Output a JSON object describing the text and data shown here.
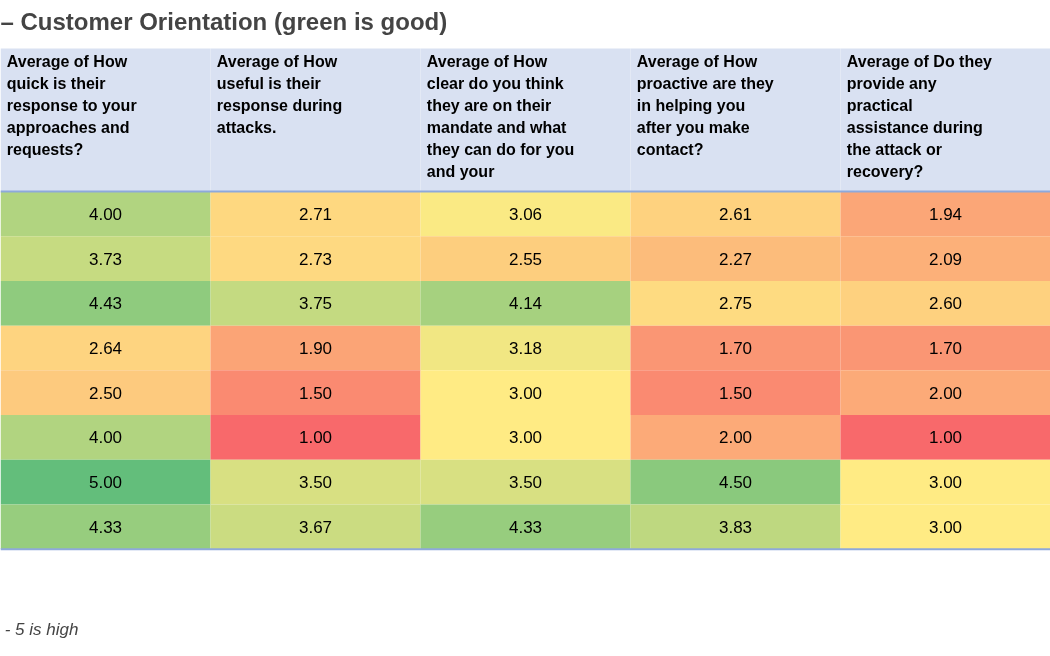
{
  "chart_data": {
    "type": "heatmap",
    "title": "– Customer Orientation (green is good)",
    "categories": [
      "Average of How quick is their response to your approaches and requests?",
      "Average of How useful is their response during attacks.",
      "Average of How clear do you think they are on their mandate and what they can do for you and your",
      "Average of How proactive are they in helping you after you make contact?",
      "Average of Do they provide any practical assistance during the attack or recovery?"
    ],
    "y_categories": [
      null,
      null,
      null,
      null,
      null,
      null,
      null,
      null
    ],
    "cells": [
      [
        4.0,
        2.71,
        3.06,
        2.61,
        1.94
      ],
      [
        3.73,
        2.73,
        2.55,
        2.27,
        2.09
      ],
      [
        4.43,
        3.75,
        4.14,
        2.75,
        2.6
      ],
      [
        2.64,
        1.9,
        3.18,
        1.7,
        1.7
      ],
      [
        2.5,
        1.5,
        3.0,
        1.5,
        2.0
      ],
      [
        4.0,
        1.0,
        3.0,
        2.0,
        1.0
      ],
      [
        5.0,
        3.5,
        3.5,
        4.5,
        3.0
      ],
      [
        4.33,
        3.67,
        4.33,
        3.83,
        3.0
      ]
    ],
    "cell_labels": [
      [
        "4.00",
        "2.71",
        "3.06",
        "2.61",
        "1.94"
      ],
      [
        "3.73",
        "2.73",
        "2.55",
        "2.27",
        "2.09"
      ],
      [
        "4.43",
        "3.75",
        "4.14",
        "2.75",
        "2.60"
      ],
      [
        "2.64",
        "1.90",
        "3.18",
        "1.70",
        "1.70"
      ],
      [
        "2.50",
        "1.50",
        "3.00",
        "1.50",
        "2.00"
      ],
      [
        "4.00",
        "1.00",
        "3.00",
        "2.00",
        "1.00"
      ],
      [
        "5.00",
        "3.50",
        "3.50",
        "4.50",
        "3.00"
      ],
      [
        "4.33",
        "3.67",
        "4.33",
        "3.83",
        "3.00"
      ]
    ],
    "annotations": [
      "- 5 is high"
    ]
  }
}
